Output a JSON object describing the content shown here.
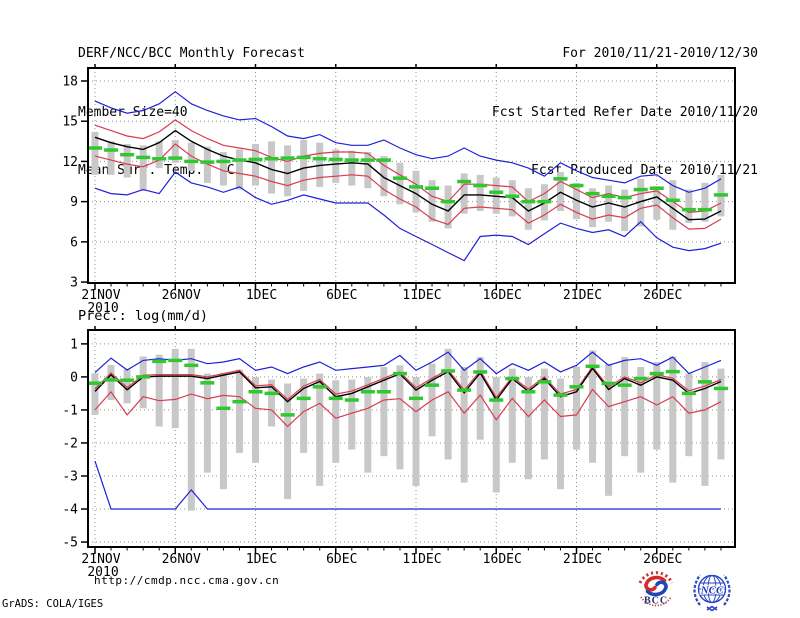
{
  "header": {
    "title": "DERF/NCC/BCC Monthly Forecast",
    "member_size": "Member Size=40",
    "temp_panel_label": "Mean Surf. Temp.: °C",
    "for_range": "For 2010/11/21-2010/12/30",
    "refer_date": "Fcst Started Refer Date 2010/11/20",
    "produced_date": "Fcst Produced Date 2010/11/21"
  },
  "precip_panel_label": "Prec.: log(mm/d)",
  "footer": {
    "url": "http://cmdp.ncc.cma.gov.cn",
    "grads_credit": "GrADS: COLA/IGES",
    "logos": [
      {
        "name": "bcc-logo",
        "text": "BCC"
      },
      {
        "name": "ncc-logo",
        "text": "NCC"
      }
    ]
  },
  "colors": {
    "max_min_line": "#2020d8",
    "spread_line": "#d83c50",
    "mean_line": "#000000",
    "obs_dash": "#2fc82f",
    "member_bar": "#c8c8c8",
    "grid": "#909090",
    "logo_red": "#d42a2a",
    "logo_blue": "#2947c4",
    "logo_navy": "#223377"
  },
  "chart_data": [
    {
      "type": "line",
      "name": "temperature",
      "title": "Mean Surf. Temp.: °C",
      "ylabel": "",
      "xlabel": "",
      "n_days": 40,
      "x_tick_labels": [
        "21NOV",
        "26NOV",
        "1DEC",
        "6DEC",
        "11DEC",
        "16DEC",
        "21DEC",
        "26DEC"
      ],
      "x_tick_days": [
        0,
        5,
        10,
        15,
        20,
        25,
        30,
        35
      ],
      "x_year_label": "2010",
      "ylim": [
        2.93,
        18.97
      ],
      "yticks": [
        18,
        15,
        12,
        9,
        6,
        3
      ],
      "grid": true,
      "series": [
        {
          "name": "ensemble-max",
          "color": "#2020d8",
          "values": [
            16.5,
            16.0,
            15.6,
            15.8,
            16.3,
            17.2,
            16.3,
            15.8,
            15.4,
            15.1,
            15.2,
            14.6,
            13.9,
            13.7,
            14.0,
            13.4,
            13.2,
            13.2,
            13.6,
            13.0,
            12.5,
            12.2,
            12.4,
            13.0,
            12.4,
            12.1,
            11.9,
            11.5,
            10.9,
            11.9,
            11.3,
            10.8,
            10.6,
            10.4,
            10.9,
            11.0,
            10.2,
            9.7,
            10.0,
            10.7
          ]
        },
        {
          "name": "plus-spread",
          "color": "#d83c50",
          "values": [
            14.7,
            14.3,
            13.9,
            13.7,
            14.2,
            15.1,
            14.3,
            13.7,
            13.2,
            13.0,
            12.8,
            12.3,
            12.0,
            12.4,
            12.6,
            12.7,
            12.7,
            12.6,
            11.7,
            11.0,
            10.3,
            9.4,
            9.0,
            10.3,
            10.3,
            10.2,
            10.1,
            9.0,
            9.6,
            10.5,
            9.9,
            9.3,
            9.6,
            9.3,
            9.6,
            9.8,
            9.0,
            8.2,
            8.3,
            8.9
          ]
        },
        {
          "name": "ensemble-mean",
          "color": "#000000",
          "values": [
            13.8,
            13.4,
            13.1,
            12.9,
            13.4,
            14.3,
            13.5,
            12.9,
            12.4,
            12.1,
            11.9,
            11.4,
            11.1,
            11.5,
            11.7,
            11.8,
            11.9,
            11.8,
            10.8,
            10.2,
            9.6,
            8.8,
            8.3,
            9.5,
            9.5,
            9.4,
            9.3,
            8.3,
            8.9,
            9.7,
            9.1,
            8.6,
            8.9,
            8.6,
            9.0,
            9.35,
            8.5,
            7.65,
            7.7,
            8.3
          ]
        },
        {
          "name": "minus-spread",
          "color": "#d83c50",
          "values": [
            12.4,
            12.1,
            11.8,
            11.6,
            12.1,
            13.3,
            12.4,
            11.8,
            11.3,
            11.1,
            10.9,
            10.5,
            10.2,
            10.6,
            10.8,
            10.9,
            11.0,
            10.9,
            9.9,
            9.2,
            8.6,
            7.7,
            7.3,
            8.5,
            8.6,
            8.5,
            8.4,
            7.4,
            8.0,
            8.8,
            8.2,
            7.7,
            8.0,
            7.8,
            8.5,
            8.75,
            7.8,
            6.95,
            7.0,
            7.7
          ]
        },
        {
          "name": "ensemble-min",
          "color": "#2020d8",
          "values": [
            10.0,
            9.6,
            9.5,
            9.9,
            9.6,
            11.2,
            10.4,
            10.1,
            9.7,
            10.1,
            9.3,
            8.8,
            9.1,
            9.5,
            9.2,
            8.9,
            8.9,
            8.9,
            8.0,
            7.0,
            6.4,
            5.8,
            5.2,
            4.6,
            6.4,
            6.5,
            6.4,
            5.8,
            6.6,
            7.4,
            7.0,
            6.7,
            6.9,
            6.4,
            7.5,
            6.3,
            5.6,
            5.35,
            5.5,
            5.9
          ]
        },
        {
          "name": "observation",
          "color": "#2fc82f",
          "style": "dash-marks",
          "values": [
            13.0,
            12.85,
            12.5,
            12.3,
            12.2,
            12.25,
            12.0,
            11.95,
            12.0,
            12.1,
            12.15,
            12.2,
            12.25,
            12.3,
            12.2,
            12.15,
            12.1,
            12.1,
            12.1,
            10.75,
            10.1,
            10.0,
            9.0,
            10.5,
            10.2,
            9.7,
            9.4,
            9.0,
            9.0,
            10.7,
            10.2,
            9.6,
            9.4,
            9.3,
            9.9,
            10.0,
            9.1,
            8.4,
            8.4,
            9.5
          ]
        }
      ],
      "bars": {
        "name": "member-spread",
        "color": "#c8c8c8",
        "top": [
          14.2,
          13.5,
          13.3,
          13.2,
          13.5,
          13.6,
          13.4,
          13.1,
          12.7,
          12.9,
          13.3,
          13.5,
          13.2,
          13.6,
          13.4,
          12.9,
          12.8,
          12.7,
          12.4,
          11.9,
          11.3,
          10.6,
          10.2,
          11.1,
          11.0,
          10.8,
          10.6,
          10.0,
          10.3,
          11.2,
          10.4,
          10.0,
          10.2,
          9.9,
          10.7,
          10.15,
          10.6,
          9.9,
          10.4,
          11.0
        ],
        "bottom": [
          11.0,
          11.0,
          10.8,
          9.8,
          11.5,
          11.9,
          11.3,
          10.4,
          10.2,
          9.9,
          10.2,
          9.6,
          9.4,
          9.8,
          10.1,
          10.4,
          10.2,
          10.0,
          9.4,
          8.8,
          8.2,
          7.5,
          7.0,
          8.1,
          8.3,
          8.1,
          7.9,
          6.9,
          7.6,
          8.3,
          7.7,
          7.1,
          7.5,
          6.8,
          7.15,
          7.65,
          6.9,
          7.4,
          7.5,
          7.9
        ]
      }
    },
    {
      "type": "line",
      "name": "precipitation",
      "title": "Prec.: log(mm/d)",
      "ylabel": "",
      "xlabel": "",
      "n_days": 40,
      "x_tick_labels": [
        "21NOV",
        "26NOV",
        "1DEC",
        "6DEC",
        "11DEC",
        "16DEC",
        "21DEC",
        "26DEC"
      ],
      "x_tick_days": [
        0,
        5,
        10,
        15,
        20,
        25,
        30,
        35
      ],
      "x_year_label": "2010",
      "ylim": [
        -5.15,
        1.42
      ],
      "yticks": [
        1,
        0,
        -1,
        -2,
        -3,
        -4,
        -5
      ],
      "grid": true,
      "series": [
        {
          "name": "ensemble-max",
          "color": "#2020d8",
          "values": [
            0.13,
            0.57,
            0.21,
            0.5,
            0.55,
            0.5,
            0.55,
            0.4,
            0.45,
            0.55,
            0.2,
            0.3,
            0.1,
            0.3,
            0.45,
            0.2,
            0.25,
            0.3,
            0.35,
            0.65,
            0.2,
            0.45,
            0.75,
            0.2,
            0.55,
            0.1,
            0.4,
            0.2,
            0.45,
            0.15,
            0.35,
            0.75,
            0.35,
            0.5,
            0.55,
            0.35,
            0.6,
            0.1,
            0.3,
            0.5
          ]
        },
        {
          "name": "plus-spread",
          "color": "#d83c50",
          "values": [
            -0.36,
            0.12,
            -0.32,
            0.05,
            0.07,
            0.07,
            0.07,
            0.0,
            0.1,
            0.2,
            -0.27,
            -0.24,
            -0.68,
            -0.28,
            -0.08,
            -0.52,
            -0.43,
            -0.24,
            -0.04,
            0.15,
            -0.33,
            -0.04,
            0.22,
            -0.4,
            0.18,
            -0.62,
            0.0,
            -0.37,
            0.0,
            -0.52,
            -0.38,
            0.3,
            -0.3,
            0.0,
            -0.18,
            0.06,
            -0.04,
            -0.42,
            -0.28,
            -0.08
          ]
        },
        {
          "name": "ensemble-mean",
          "color": "#000000",
          "values": [
            -0.44,
            0.06,
            -0.39,
            0.0,
            0.02,
            0.02,
            0.02,
            -0.05,
            0.05,
            0.15,
            -0.33,
            -0.3,
            -0.75,
            -0.35,
            -0.14,
            -0.6,
            -0.5,
            -0.3,
            -0.1,
            0.09,
            -0.4,
            -0.1,
            0.16,
            -0.48,
            0.12,
            -0.7,
            -0.05,
            -0.44,
            -0.05,
            -0.6,
            -0.45,
            0.26,
            -0.38,
            -0.05,
            -0.25,
            0.0,
            -0.1,
            -0.5,
            -0.35,
            -0.14
          ]
        },
        {
          "name": "minus-spread",
          "color": "#d83c50",
          "values": [
            -1.0,
            -0.45,
            -1.15,
            -0.6,
            -0.72,
            -0.68,
            -0.52,
            -0.66,
            -0.56,
            -0.6,
            -0.95,
            -1.0,
            -1.5,
            -1.05,
            -0.8,
            -1.25,
            -1.1,
            -0.95,
            -0.7,
            -0.66,
            -1.05,
            -0.7,
            -0.45,
            -1.1,
            -0.55,
            -1.3,
            -0.65,
            -1.2,
            -0.7,
            -1.2,
            -1.15,
            -0.38,
            -0.9,
            -0.75,
            -0.6,
            -0.85,
            -0.6,
            -1.1,
            -1.0,
            -0.75
          ]
        },
        {
          "name": "ensemble-min",
          "color": "#2020d8",
          "values": [
            -2.55,
            -4.0,
            -4.0,
            -4.0,
            -4.0,
            -4.0,
            -3.42,
            -4.0,
            -4.0,
            -4.0,
            -4.0,
            -4.0,
            -4.0,
            -4.0,
            -4.0,
            -4.0,
            -4.0,
            -4.0,
            -4.0,
            -4.0,
            -4.0,
            -4.0,
            -4.0,
            -4.0,
            -4.0,
            -4.0,
            -4.0,
            -4.0,
            -4.0,
            -4.0,
            -4.0,
            -4.0,
            -4.0,
            -4.0,
            -4.0,
            -4.0,
            -4.0,
            -4.0,
            -4.0,
            -4.0
          ]
        },
        {
          "name": "observation",
          "color": "#2fc82f",
          "style": "dash-marks",
          "values": [
            -0.19,
            -0.09,
            -0.1,
            0.0,
            0.47,
            0.5,
            0.35,
            -0.18,
            -0.95,
            -0.75,
            -0.45,
            -0.5,
            -1.15,
            -0.65,
            -0.3,
            -0.65,
            -0.7,
            -0.45,
            -0.45,
            0.1,
            -0.65,
            -0.25,
            0.18,
            -0.4,
            0.15,
            -0.7,
            -0.05,
            -0.45,
            -0.15,
            -0.55,
            -0.3,
            0.32,
            -0.2,
            -0.25,
            -0.05,
            0.1,
            0.16,
            -0.5,
            -0.15,
            -0.35
          ]
        }
      ],
      "bars": {
        "name": "member-spread",
        "color": "#c8c8c8",
        "top": [
          0.11,
          0.36,
          0.23,
          0.62,
          0.67,
          0.85,
          0.85,
          0.1,
          0.12,
          0.22,
          0.0,
          -0.08,
          -0.2,
          -0.05,
          0.1,
          -0.1,
          -0.08,
          0.0,
          0.3,
          0.35,
          0.0,
          0.4,
          0.85,
          0.3,
          0.6,
          0.0,
          0.25,
          0.0,
          0.25,
          -0.05,
          0.3,
          0.8,
          0.4,
          0.6,
          0.3,
          0.45,
          0.62,
          0.1,
          0.45,
          0.25
        ],
        "bottom": [
          -1.15,
          -0.7,
          -0.8,
          -0.95,
          -1.5,
          -1.55,
          -4.05,
          -2.9,
          -3.4,
          -2.3,
          -2.6,
          -1.5,
          -3.7,
          -2.3,
          -3.3,
          -2.6,
          -2.2,
          -2.9,
          -2.4,
          -2.8,
          -3.3,
          -1.8,
          -2.5,
          -3.2,
          -1.9,
          -3.5,
          -2.6,
          -3.1,
          -2.5,
          -3.4,
          -2.2,
          -2.6,
          -3.6,
          -2.4,
          -2.9,
          -2.2,
          -3.2,
          -2.4,
          -3.3,
          -2.5
        ]
      }
    }
  ]
}
